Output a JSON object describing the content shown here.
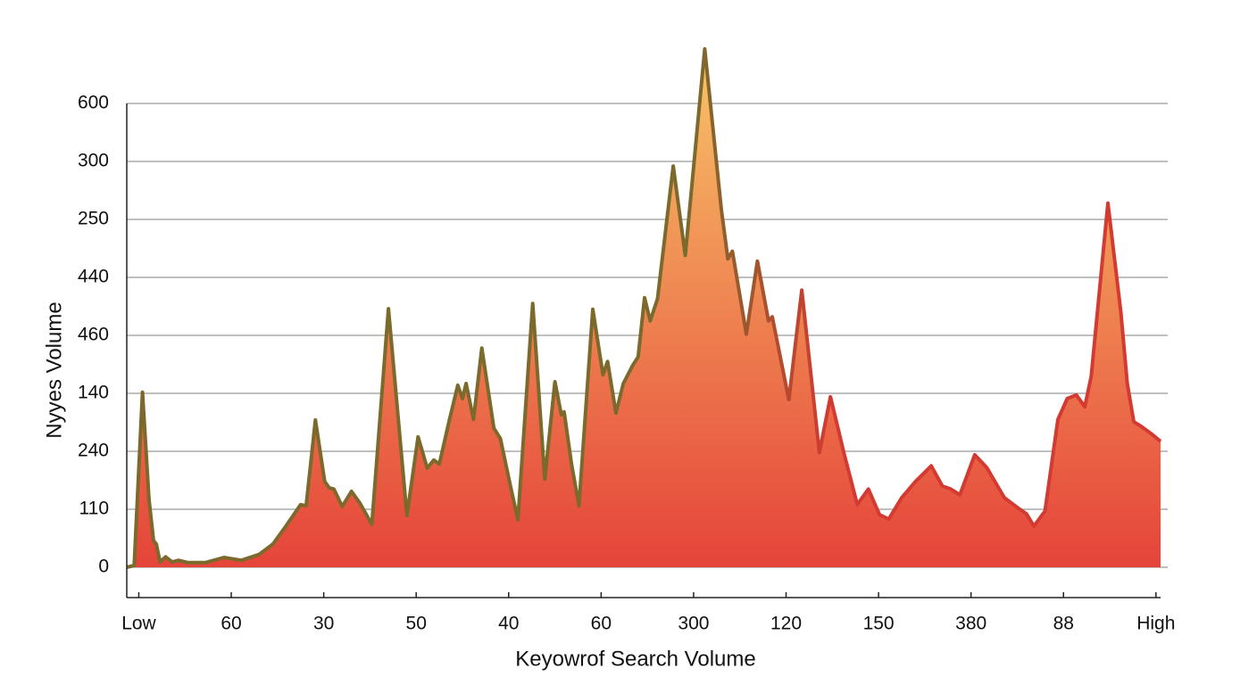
{
  "chart_data": {
    "type": "area",
    "x_label": "Keyowrof Search Volume",
    "y_label": "Nyyes Volume",
    "xlim": [
      -0.13,
      11.05
    ],
    "ylim": [
      0,
      9
    ],
    "xticks": [
      {
        "value": 0,
        "label": "Low"
      },
      {
        "value": 1,
        "label": "60"
      },
      {
        "value": 2,
        "label": "30"
      },
      {
        "value": 3,
        "label": "50"
      },
      {
        "value": 4,
        "label": "40"
      },
      {
        "value": 5,
        "label": "60"
      },
      {
        "value": 6,
        "label": "300"
      },
      {
        "value": 7,
        "label": "120"
      },
      {
        "value": 8,
        "label": "150"
      },
      {
        "value": 9,
        "label": "380"
      },
      {
        "value": 10,
        "label": "88"
      },
      {
        "value": 11,
        "label": "High"
      }
    ],
    "yticks": [
      {
        "value": 0,
        "label": "0"
      },
      {
        "value": 1,
        "label": "110"
      },
      {
        "value": 2,
        "label": "240"
      },
      {
        "value": 3,
        "label": "140"
      },
      {
        "value": 4,
        "label": "460"
      },
      {
        "value": 5,
        "label": "440"
      },
      {
        "value": 6,
        "label": "250"
      },
      {
        "value": 7,
        "label": "300"
      },
      {
        "value": 8,
        "label": "600"
      }
    ],
    "grid": true,
    "line_colors": [
      "#7b6a2c",
      "#d33a32"
    ],
    "fill_colors": [
      "#f8c468",
      "#e5443a"
    ],
    "x": [
      -0.13,
      -0.05,
      0.04,
      0.11,
      0.16,
      0.19,
      0.23,
      0.29,
      0.36,
      0.43,
      0.53,
      0.72,
      0.92,
      1.11,
      1.3,
      1.45,
      1.59,
      1.69,
      1.75,
      1.81,
      1.91,
      2.01,
      2.06,
      2.11,
      2.2,
      2.3,
      2.39,
      2.52,
      2.7,
      2.9,
      3.02,
      3.12,
      3.19,
      3.25,
      3.36,
      3.45,
      3.5,
      3.54,
      3.62,
      3.71,
      3.84,
      3.91,
      4.02,
      4.1,
      4.26,
      4.39,
      4.5,
      4.57,
      4.6,
      4.68,
      4.76,
      4.91,
      5.02,
      5.07,
      5.16,
      5.24,
      5.34,
      5.4,
      5.47,
      5.53,
      5.61,
      5.78,
      5.91,
      6.12,
      6.3,
      6.37,
      6.42,
      6.57,
      6.69,
      6.81,
      6.85,
      7.03,
      7.17,
      7.36,
      7.48,
      7.63,
      7.77,
      7.89,
      8.01,
      8.11,
      8.25,
      8.4,
      8.57,
      8.69,
      8.78,
      8.88,
      9.04,
      9.17,
      9.36,
      9.51,
      9.6,
      9.68,
      9.8,
      9.94,
      10.04,
      10.14,
      10.23,
      10.3,
      10.48,
      10.62,
      10.69,
      10.76,
      10.84,
      10.96,
      11.05
    ],
    "values": [
      0,
      0.03,
      3.02,
      1.17,
      0.46,
      0.4,
      0.09,
      0.18,
      0.09,
      0.12,
      0.08,
      0.08,
      0.17,
      0.12,
      0.22,
      0.4,
      0.71,
      0.94,
      1.08,
      1.06,
      2.54,
      1.48,
      1.37,
      1.35,
      1.05,
      1.31,
      1.11,
      0.74,
      4.46,
      0.89,
      2.25,
      1.71,
      1.85,
      1.78,
      2.55,
      3.14,
      2.91,
      3.17,
      2.55,
      3.78,
      2.4,
      2.22,
      1.4,
      0.82,
      4.55,
      1.52,
      3.2,
      2.63,
      2.68,
      1.78,
      1.06,
      4.45,
      3.32,
      3.55,
      2.66,
      3.17,
      3.48,
      3.63,
      4.65,
      4.25,
      4.63,
      6.92,
      5.38,
      8.94,
      6.17,
      5.32,
      5.45,
      4.02,
      5.28,
      4.25,
      4.32,
      2.89,
      4.78,
      1.98,
      2.94,
      1.94,
      1.08,
      1.35,
      0.91,
      0.83,
      1.2,
      1.48,
      1.75,
      1.4,
      1.35,
      1.25,
      1.94,
      1.72,
      1.2,
      1.02,
      0.92,
      0.71,
      0.97,
      2.55,
      2.91,
      2.97,
      2.77,
      3.29,
      6.28,
      4.4,
      3.17,
      2.51,
      2.43,
      2.29,
      2.17
    ]
  }
}
